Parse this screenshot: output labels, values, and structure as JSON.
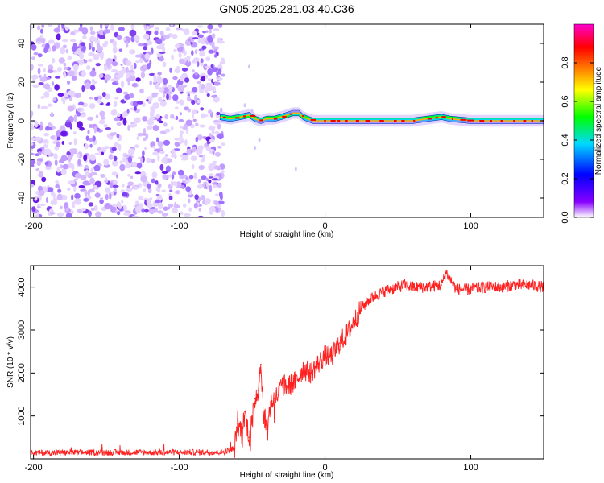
{
  "title": "GN05.2025.281.03.40.C36",
  "chart_data": [
    {
      "type": "heatmap",
      "title": "",
      "xlabel": "Height of straight line (km)",
      "ylabel": "Frequency (Hz)",
      "xlim": [
        -202,
        150
      ],
      "ylim": [
        -50,
        50
      ],
      "xticks": [
        -200,
        -100,
        0,
        100
      ],
      "xtick_labels": [
        "-200",
        "-100",
        "0",
        "100"
      ],
      "yticks": [
        -40,
        -20,
        0,
        20,
        40
      ],
      "ytick_labels": [
        "-40",
        "-20",
        "0",
        "20",
        "40"
      ],
      "description_regions": {
        "noise_region_x": [
          -202,
          -72
        ],
        "signal_x": [
          -72,
          150
        ],
        "signal_frequency_hz": 0
      },
      "signal_track": {
        "x": [
          -72,
          -65,
          -58,
          -52,
          -48,
          -44,
          -40,
          -35,
          -30,
          -26,
          -22,
          -18,
          -15,
          -12,
          -8,
          0,
          20,
          40,
          60,
          70,
          80,
          86,
          100,
          120,
          150
        ],
        "freq": [
          2,
          1,
          2,
          3,
          1,
          0,
          1,
          1,
          2,
          3,
          4,
          4,
          2,
          1,
          0,
          0,
          0,
          0,
          0,
          1,
          2,
          1,
          0,
          0,
          0
        ]
      },
      "colorbar": {
        "label": "Normalized spectral amplitude",
        "range": [
          0.0,
          1.0
        ],
        "ticks": [
          0.0,
          0.2,
          0.4,
          0.6,
          0.8
        ],
        "tick_labels": [
          "0.0",
          "0.2",
          "0.4",
          "0.6",
          "0.8"
        ],
        "colors": [
          "#ffffff",
          "#8800ff",
          "#0000ff",
          "#00d8ff",
          "#00ff00",
          "#ffff00",
          "#ff8800",
          "#ff0000",
          "#ff00cc"
        ]
      }
    },
    {
      "type": "line",
      "title": "",
      "xlabel": "Height of straight line (km)",
      "ylabel": "SNR (10 * v/v)",
      "xlim": [
        -202,
        150
      ],
      "ylim": [
        0,
        4500
      ],
      "xticks": [
        -200,
        -100,
        0,
        100
      ],
      "xtick_labels": [
        "-200",
        "-100",
        "0",
        "100"
      ],
      "yticks": [
        1000,
        2000,
        3000,
        4000
      ],
      "ytick_labels": [
        "1000",
        "2000",
        "3000",
        "4000"
      ],
      "series": [
        {
          "name": "SNR",
          "color": "#ff2020",
          "x": [
            -202,
            -150,
            -100,
            -70,
            -62,
            -60,
            -57,
            -55,
            -52,
            -50,
            -48,
            -46,
            -44,
            -42,
            -40,
            -37,
            -35,
            -32,
            -30,
            -25,
            -20,
            -15,
            -10,
            -5,
            0,
            5,
            10,
            15,
            20,
            25,
            30,
            35,
            40,
            45,
            50,
            55,
            60,
            70,
            80,
            83,
            90,
            100,
            110,
            120,
            130,
            140,
            150
          ],
          "values": [
            140,
            150,
            150,
            160,
            240,
            900,
            600,
            1100,
            500,
            900,
            1400,
            1600,
            2200,
            1000,
            800,
            1300,
            1400,
            1500,
            1700,
            1700,
            1800,
            2100,
            2000,
            2200,
            2400,
            2400,
            2700,
            2900,
            3200,
            3500,
            3700,
            3800,
            3900,
            3950,
            4000,
            4050,
            4000,
            4000,
            4050,
            4350,
            3950,
            3950,
            4000,
            4000,
            4050,
            4050,
            4000
          ]
        }
      ]
    }
  ]
}
